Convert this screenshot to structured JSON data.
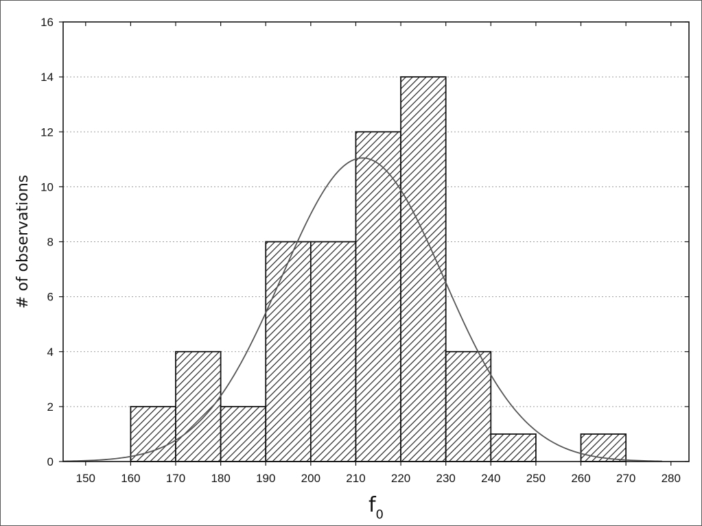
{
  "chart_data": {
    "type": "bar",
    "title": "",
    "xlabel": {
      "main": "f",
      "subscript": "0"
    },
    "ylabel": "# of observations",
    "bin_edges": [
      160,
      170,
      180,
      190,
      200,
      210,
      220,
      230,
      240,
      250,
      260,
      270
    ],
    "bars": [
      {
        "from": 160,
        "to": 170,
        "value": 2
      },
      {
        "from": 170,
        "to": 180,
        "value": 4
      },
      {
        "from": 180,
        "to": 190,
        "value": 2
      },
      {
        "from": 190,
        "to": 200,
        "value": 8
      },
      {
        "from": 200,
        "to": 210,
        "value": 8
      },
      {
        "from": 210,
        "to": 220,
        "value": 12
      },
      {
        "from": 220,
        "to": 230,
        "value": 14
      },
      {
        "from": 230,
        "to": 240,
        "value": 4
      },
      {
        "from": 240,
        "to": 250,
        "value": 1
      },
      {
        "from": 260,
        "to": 270,
        "value": 1
      }
    ],
    "normal_fit": {
      "mean": 211.5,
      "sd": 18,
      "peak": 11.05
    },
    "xlim": [
      145,
      284
    ],
    "ylim": [
      0,
      16
    ],
    "xticks": [
      "150",
      "160",
      "170",
      "180",
      "190",
      "200",
      "210",
      "220",
      "230",
      "240",
      "250",
      "260",
      "270",
      "280"
    ],
    "yticks": [
      "0",
      "2",
      "4",
      "6",
      "8",
      "10",
      "12",
      "14",
      "16"
    ],
    "grid": "horizontal dotted",
    "bar_fill": "diagonal hatch",
    "colors": {
      "bar_stroke": "#111111",
      "hatch": "#222222",
      "curve": "#555555",
      "grid": "#9a9a9a"
    }
  }
}
